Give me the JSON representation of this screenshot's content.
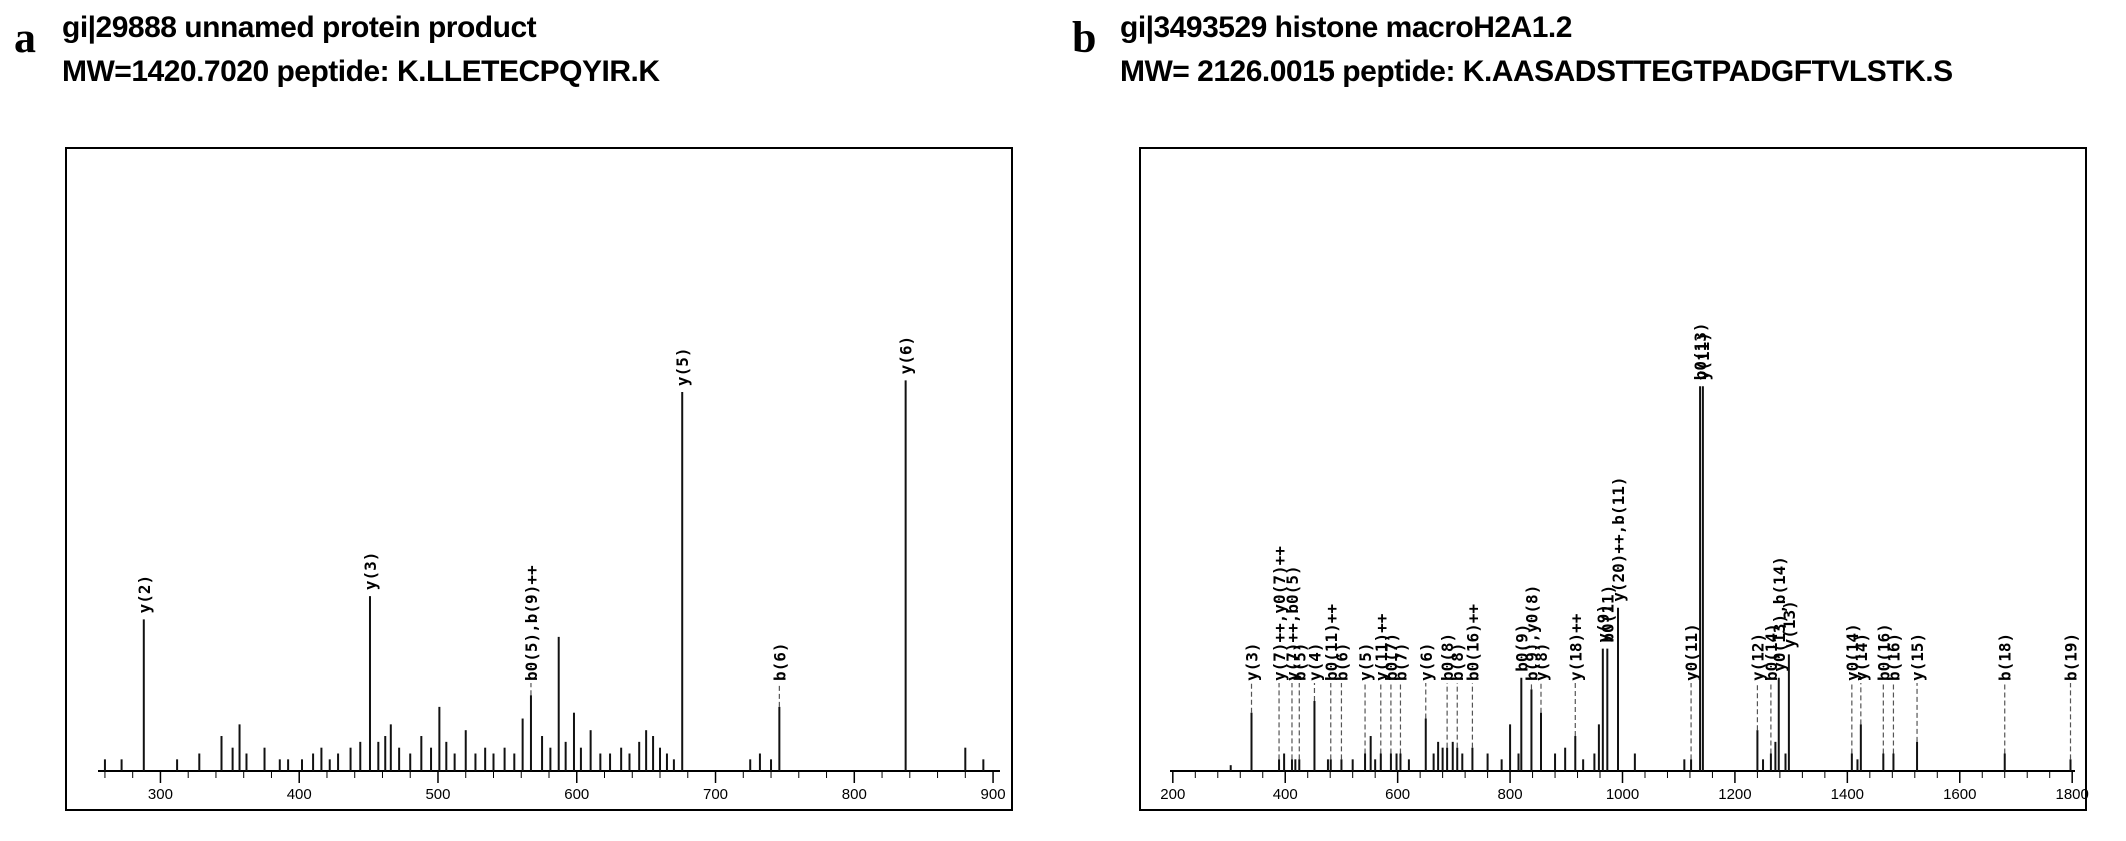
{
  "chart_data": [
    {
      "panel": "a",
      "type": "bar",
      "title_line1": "gi|29888 unnamed protein product",
      "title_line2": "MW=1420.7020  peptide: K.LLETECPQYIR.K",
      "xlabel": "",
      "ylabel": "",
      "xlim": [
        255,
        905
      ],
      "ylim": [
        0,
        100
      ],
      "xticks": [
        300,
        400,
        500,
        600,
        700,
        800,
        900
      ],
      "grid": false,
      "annotated_peaks": [
        {
          "x": 288,
          "y": 26,
          "label": "y(2)"
        },
        {
          "x": 451,
          "y": 30,
          "label": "y(3)"
        },
        {
          "x": 567,
          "y": 13,
          "label": "b0(5),b(9)++"
        },
        {
          "x": 676,
          "y": 65,
          "label": "y(5)"
        },
        {
          "x": 746,
          "y": 11,
          "label": "b(6)"
        },
        {
          "x": 837,
          "y": 67,
          "label": "y(6)"
        }
      ],
      "minor_peaks": [
        {
          "x": 260,
          "y": 2
        },
        {
          "x": 272,
          "y": 2
        },
        {
          "x": 312,
          "y": 2
        },
        {
          "x": 328,
          "y": 3
        },
        {
          "x": 344,
          "y": 6
        },
        {
          "x": 352,
          "y": 4
        },
        {
          "x": 357,
          "y": 8
        },
        {
          "x": 362,
          "y": 3
        },
        {
          "x": 375,
          "y": 4
        },
        {
          "x": 386,
          "y": 2
        },
        {
          "x": 392,
          "y": 2
        },
        {
          "x": 402,
          "y": 2
        },
        {
          "x": 410,
          "y": 3
        },
        {
          "x": 416,
          "y": 4
        },
        {
          "x": 422,
          "y": 2
        },
        {
          "x": 428,
          "y": 3
        },
        {
          "x": 437,
          "y": 4
        },
        {
          "x": 444,
          "y": 5
        },
        {
          "x": 457,
          "y": 5
        },
        {
          "x": 462,
          "y": 6
        },
        {
          "x": 466,
          "y": 8
        },
        {
          "x": 472,
          "y": 4
        },
        {
          "x": 480,
          "y": 3
        },
        {
          "x": 488,
          "y": 6
        },
        {
          "x": 495,
          "y": 4
        },
        {
          "x": 501,
          "y": 11
        },
        {
          "x": 506,
          "y": 5
        },
        {
          "x": 512,
          "y": 3
        },
        {
          "x": 520,
          "y": 7
        },
        {
          "x": 527,
          "y": 3
        },
        {
          "x": 534,
          "y": 4
        },
        {
          "x": 540,
          "y": 3
        },
        {
          "x": 548,
          "y": 4
        },
        {
          "x": 555,
          "y": 3
        },
        {
          "x": 561,
          "y": 9
        },
        {
          "x": 575,
          "y": 6
        },
        {
          "x": 581,
          "y": 4
        },
        {
          "x": 587,
          "y": 23
        },
        {
          "x": 592,
          "y": 5
        },
        {
          "x": 598,
          "y": 10
        },
        {
          "x": 603,
          "y": 4
        },
        {
          "x": 610,
          "y": 7
        },
        {
          "x": 617,
          "y": 3
        },
        {
          "x": 624,
          "y": 3
        },
        {
          "x": 632,
          "y": 4
        },
        {
          "x": 638,
          "y": 3
        },
        {
          "x": 645,
          "y": 5
        },
        {
          "x": 650,
          "y": 7
        },
        {
          "x": 655,
          "y": 6
        },
        {
          "x": 660,
          "y": 4
        },
        {
          "x": 665,
          "y": 3
        },
        {
          "x": 670,
          "y": 2
        },
        {
          "x": 725,
          "y": 2
        },
        {
          "x": 732,
          "y": 3
        },
        {
          "x": 740,
          "y": 2
        },
        {
          "x": 880,
          "y": 4
        },
        {
          "x": 893,
          "y": 2
        }
      ]
    },
    {
      "panel": "b",
      "type": "bar",
      "title_line1": "gi|3493529 histone macroH2A1.2",
      "title_line2": "MW= 2126.0015 peptide: K.AASADSTTEGTPADGFTVLSTK.S",
      "xlabel": "",
      "ylabel": "",
      "xlim": [
        195,
        1805
      ],
      "ylim": [
        0,
        100
      ],
      "xticks": [
        200,
        400,
        600,
        800,
        1000,
        1200,
        1400,
        1600,
        1800
      ],
      "grid": false,
      "annotated_peaks": [
        {
          "x": 340,
          "y": 10,
          "label": "y(3)"
        },
        {
          "x": 389,
          "y": 2,
          "label": "y(7)++,y0(7)++"
        },
        {
          "x": 412,
          "y": 2,
          "label": "y(7)++,b0(5)"
        },
        {
          "x": 425,
          "y": 2,
          "label": "b(5)"
        },
        {
          "x": 452,
          "y": 12,
          "label": "y(4)"
        },
        {
          "x": 481,
          "y": 2,
          "label": "b0(11)++"
        },
        {
          "x": 500,
          "y": 2,
          "label": "b(6)"
        },
        {
          "x": 542,
          "y": 3,
          "label": "y(5)"
        },
        {
          "x": 570,
          "y": 3,
          "label": "y(11)++"
        },
        {
          "x": 588,
          "y": 3,
          "label": "b0(7)"
        },
        {
          "x": 605,
          "y": 3,
          "label": "b(7)"
        },
        {
          "x": 650,
          "y": 9,
          "label": "y(6)"
        },
        {
          "x": 688,
          "y": 4,
          "label": "b0(8)"
        },
        {
          "x": 706,
          "y": 4,
          "label": "b(8)"
        },
        {
          "x": 733,
          "y": 4,
          "label": "b0(16)++"
        },
        {
          "x": 820,
          "y": 16,
          "label": "b0(9)"
        },
        {
          "x": 838,
          "y": 14,
          "label": "b(9),y0(8)"
        },
        {
          "x": 855,
          "y": 10,
          "label": "y(8)"
        },
        {
          "x": 916,
          "y": 6,
          "label": "y(18)++"
        },
        {
          "x": 965,
          "y": 21,
          "label": "y(9)"
        },
        {
          "x": 973,
          "y": 21,
          "label": "b0(11)"
        },
        {
          "x": 992,
          "y": 28,
          "label": "y(20)++,b(11)"
        },
        {
          "x": 1122,
          "y": 2,
          "label": "y0(11)"
        },
        {
          "x": 1138,
          "y": 66,
          "label": "b0(13)"
        },
        {
          "x": 1143,
          "y": 66,
          "label": "y(11)"
        },
        {
          "x": 1240,
          "y": 7,
          "label": "y(12)"
        },
        {
          "x": 1264,
          "y": 3,
          "label": "b0(14)"
        },
        {
          "x": 1278,
          "y": 16,
          "label": "y0(13),b(14)"
        },
        {
          "x": 1296,
          "y": 20,
          "label": "y(13)"
        },
        {
          "x": 1408,
          "y": 3,
          "label": "y0(14)"
        },
        {
          "x": 1424,
          "y": 8,
          "label": "y(14)"
        },
        {
          "x": 1464,
          "y": 3,
          "label": "b0(16)"
        },
        {
          "x": 1482,
          "y": 3,
          "label": "b(16)"
        },
        {
          "x": 1524,
          "y": 5,
          "label": "y(15)"
        },
        {
          "x": 1680,
          "y": 3,
          "label": "b(18)"
        },
        {
          "x": 1797,
          "y": 2,
          "label": "b(19)"
        }
      ],
      "minor_peaks": [
        {
          "x": 303,
          "y": 1
        },
        {
          "x": 398,
          "y": 3
        },
        {
          "x": 418,
          "y": 2
        },
        {
          "x": 476,
          "y": 2
        },
        {
          "x": 520,
          "y": 2
        },
        {
          "x": 552,
          "y": 6
        },
        {
          "x": 560,
          "y": 2
        },
        {
          "x": 598,
          "y": 3
        },
        {
          "x": 620,
          "y": 2
        },
        {
          "x": 664,
          "y": 3
        },
        {
          "x": 672,
          "y": 5
        },
        {
          "x": 680,
          "y": 4
        },
        {
          "x": 698,
          "y": 5
        },
        {
          "x": 715,
          "y": 3
        },
        {
          "x": 760,
          "y": 3
        },
        {
          "x": 785,
          "y": 2
        },
        {
          "x": 800,
          "y": 8
        },
        {
          "x": 815,
          "y": 3
        },
        {
          "x": 880,
          "y": 3
        },
        {
          "x": 898,
          "y": 4
        },
        {
          "x": 930,
          "y": 2
        },
        {
          "x": 950,
          "y": 3
        },
        {
          "x": 958,
          "y": 8
        },
        {
          "x": 1022,
          "y": 3
        },
        {
          "x": 1110,
          "y": 2
        },
        {
          "x": 1250,
          "y": 2
        },
        {
          "x": 1272,
          "y": 5
        },
        {
          "x": 1290,
          "y": 3
        },
        {
          "x": 1418,
          "y": 2
        }
      ]
    }
  ]
}
